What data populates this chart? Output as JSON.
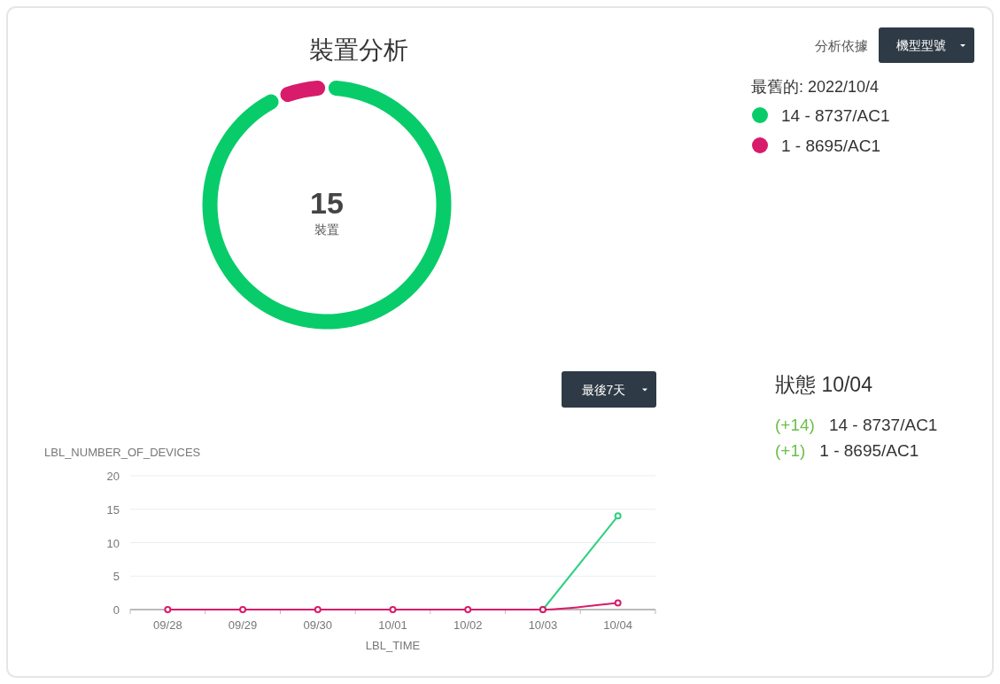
{
  "chart_data": [
    {
      "type": "donut",
      "title": "裝置分析",
      "legend_title": "最舊的: 2022/10/4",
      "legend": "top right",
      "categories": [
        "14 - 8737/AC1",
        "1 - 8695/AC1"
      ],
      "values": [
        14,
        1
      ],
      "colors": [
        "#08cc6a",
        "#d81b6b"
      ],
      "annotations": [
        "15",
        "裝置",
        "分析依據",
        "機型型號"
      ]
    },
    {
      "type": "line",
      "xlabel": "LBL_TIME",
      "ylabel": "LBL_NUMBER_OF_DEVICES",
      "categories": [
        "09/28",
        "09/29",
        "09/30",
        "10/01",
        "10/02",
        "10/03",
        "10/04"
      ],
      "series": [
        {
          "color": "#2fd07f",
          "values": [
            null,
            null,
            null,
            null,
            null,
            0,
            14
          ]
        },
        {
          "color": "#d81b6b",
          "values": [
            0,
            0,
            0,
            0,
            0,
            0,
            1
          ]
        }
      ],
      "ylim": [
        0,
        20
      ],
      "yticks": [
        0,
        5,
        10,
        15,
        20
      ],
      "grid": "y",
      "marker": "circle",
      "line_style": "solid",
      "annotations": [
        "最後7天"
      ]
    },
    {
      "type": "other",
      "title": "狀態 10/04",
      "annotations": [
        "(+14)",
        "14 - 8737/AC1",
        "(+1)",
        "1 - 8695/AC1"
      ]
    }
  ]
}
